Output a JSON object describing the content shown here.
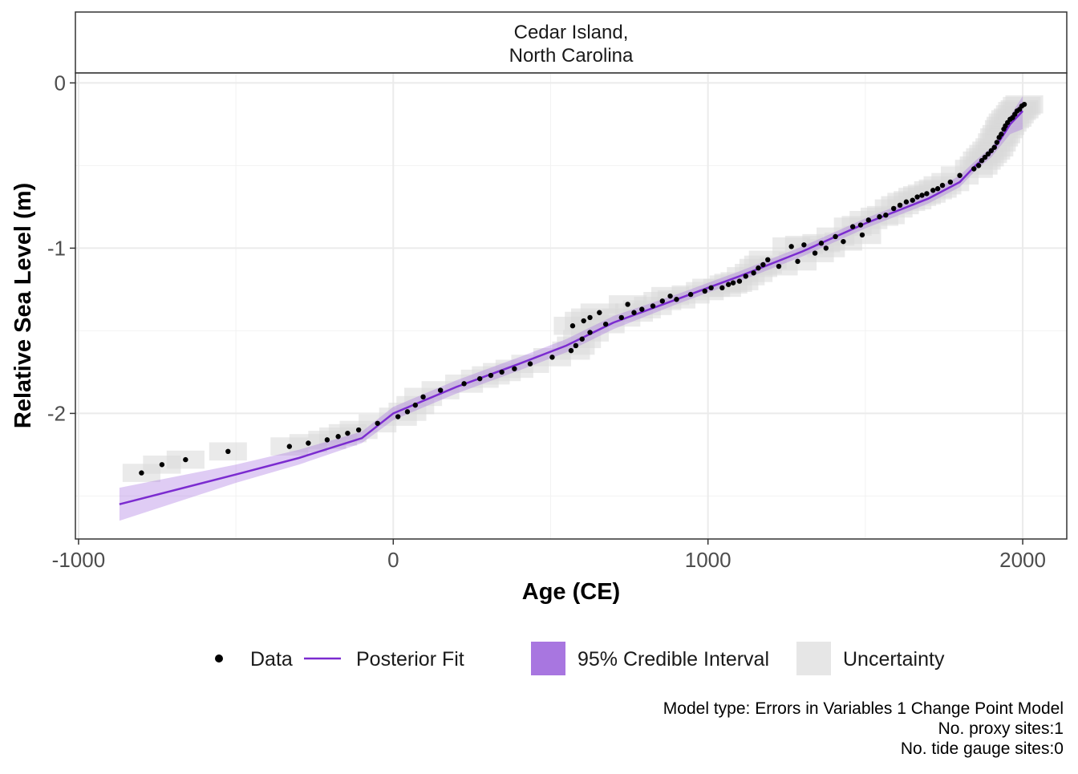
{
  "chart_data": {
    "type": "scatter",
    "facet_title_line1": "Cedar Island,",
    "facet_title_line2": "North Carolina",
    "xlabel": "Age (CE)",
    "ylabel": "Relative Sea Level (m)",
    "xlim": [
      -1010,
      2140
    ],
    "ylim": [
      -2.76,
      0.06
    ],
    "x_ticks": [
      -1000,
      0,
      1000,
      2000
    ],
    "x_tick_labels": [
      "-1000",
      "0",
      "1000",
      "2000"
    ],
    "y_ticks": [
      0,
      -1,
      -2
    ],
    "y_tick_labels": [
      "0",
      "-1",
      "-2"
    ],
    "grid": true,
    "legend_position": "bottom",
    "legend": {
      "data": "Data",
      "fit": "Posterior Fit",
      "ci": "95% Credible Interval",
      "uncertainty": "Uncertainty"
    },
    "colors": {
      "points": "#000000",
      "fit_line": "#7b2bd0",
      "ci_fill": "#a26ee0",
      "uncertainty_fill": "#d9d9d9",
      "panel_border": "#333333",
      "grid": "#ebebeb"
    },
    "points": [
      {
        "x": -800,
        "y": -2.36
      },
      {
        "x": -735,
        "y": -2.31
      },
      {
        "x": -660,
        "y": -2.28
      },
      {
        "x": -525,
        "y": -2.23
      },
      {
        "x": -330,
        "y": -2.2
      },
      {
        "x": -270,
        "y": -2.18
      },
      {
        "x": -210,
        "y": -2.16
      },
      {
        "x": -175,
        "y": -2.14
      },
      {
        "x": -145,
        "y": -2.12
      },
      {
        "x": -110,
        "y": -2.1
      },
      {
        "x": -50,
        "y": -2.06
      },
      {
        "x": 15,
        "y": -2.02
      },
      {
        "x": 45,
        "y": -1.99
      },
      {
        "x": 70,
        "y": -1.95
      },
      {
        "x": 95,
        "y": -1.9
      },
      {
        "x": 150,
        "y": -1.86
      },
      {
        "x": 225,
        "y": -1.82
      },
      {
        "x": 275,
        "y": -1.79
      },
      {
        "x": 310,
        "y": -1.77
      },
      {
        "x": 345,
        "y": -1.75
      },
      {
        "x": 385,
        "y": -1.73
      },
      {
        "x": 435,
        "y": -1.7
      },
      {
        "x": 505,
        "y": -1.66
      },
      {
        "x": 565,
        "y": -1.62
      },
      {
        "x": 580,
        "y": -1.59
      },
      {
        "x": 600,
        "y": -1.55
      },
      {
        "x": 625,
        "y": -1.51
      },
      {
        "x": 570,
        "y": -1.47
      },
      {
        "x": 605,
        "y": -1.44
      },
      {
        "x": 625,
        "y": -1.42
      },
      {
        "x": 655,
        "y": -1.39
      },
      {
        "x": 675,
        "y": -1.46
      },
      {
        "x": 725,
        "y": -1.42
      },
      {
        "x": 745,
        "y": -1.34
      },
      {
        "x": 765,
        "y": -1.39
      },
      {
        "x": 790,
        "y": -1.37
      },
      {
        "x": 825,
        "y": -1.35
      },
      {
        "x": 855,
        "y": -1.32
      },
      {
        "x": 880,
        "y": -1.29
      },
      {
        "x": 900,
        "y": -1.31
      },
      {
        "x": 945,
        "y": -1.28
      },
      {
        "x": 990,
        "y": -1.26
      },
      {
        "x": 1010,
        "y": -1.24
      },
      {
        "x": 1045,
        "y": -1.24
      },
      {
        "x": 1065,
        "y": -1.22
      },
      {
        "x": 1080,
        "y": -1.21
      },
      {
        "x": 1100,
        "y": -1.2
      },
      {
        "x": 1120,
        "y": -1.17
      },
      {
        "x": 1145,
        "y": -1.15
      },
      {
        "x": 1160,
        "y": -1.12
      },
      {
        "x": 1175,
        "y": -1.1
      },
      {
        "x": 1190,
        "y": -1.07
      },
      {
        "x": 1225,
        "y": -1.11
      },
      {
        "x": 1265,
        "y": -0.99
      },
      {
        "x": 1285,
        "y": -1.08
      },
      {
        "x": 1305,
        "y": -0.98
      },
      {
        "x": 1340,
        "y": -1.03
      },
      {
        "x": 1360,
        "y": -0.97
      },
      {
        "x": 1375,
        "y": -1.0
      },
      {
        "x": 1405,
        "y": -0.93
      },
      {
        "x": 1430,
        "y": -0.96
      },
      {
        "x": 1460,
        "y": -0.87
      },
      {
        "x": 1490,
        "y": -0.92
      },
      {
        "x": 1485,
        "y": -0.86
      },
      {
        "x": 1510,
        "y": -0.83
      },
      {
        "x": 1545,
        "y": -0.81
      },
      {
        "x": 1565,
        "y": -0.8
      },
      {
        "x": 1590,
        "y": -0.76
      },
      {
        "x": 1610,
        "y": -0.74
      },
      {
        "x": 1630,
        "y": -0.72
      },
      {
        "x": 1650,
        "y": -0.71
      },
      {
        "x": 1665,
        "y": -0.69
      },
      {
        "x": 1680,
        "y": -0.68
      },
      {
        "x": 1695,
        "y": -0.67
      },
      {
        "x": 1715,
        "y": -0.65
      },
      {
        "x": 1730,
        "y": -0.64
      },
      {
        "x": 1745,
        "y": -0.62
      },
      {
        "x": 1770,
        "y": -0.6
      },
      {
        "x": 1800,
        "y": -0.56
      },
      {
        "x": 1845,
        "y": -0.52
      },
      {
        "x": 1860,
        "y": -0.5
      },
      {
        "x": 1870,
        "y": -0.47
      },
      {
        "x": 1880,
        "y": -0.45
      },
      {
        "x": 1890,
        "y": -0.43
      },
      {
        "x": 1900,
        "y": -0.41
      },
      {
        "x": 1910,
        "y": -0.39
      },
      {
        "x": 1918,
        "y": -0.36
      },
      {
        "x": 1925,
        "y": -0.33
      },
      {
        "x": 1932,
        "y": -0.31
      },
      {
        "x": 1940,
        "y": -0.28
      },
      {
        "x": 1945,
        "y": -0.26
      },
      {
        "x": 1952,
        "y": -0.24
      },
      {
        "x": 1960,
        "y": -0.22
      },
      {
        "x": 1968,
        "y": -0.21
      },
      {
        "x": 1975,
        "y": -0.19
      },
      {
        "x": 1982,
        "y": -0.17
      },
      {
        "x": 1990,
        "y": -0.16
      },
      {
        "x": 1997,
        "y": -0.14
      },
      {
        "x": 2005,
        "y": -0.13
      }
    ],
    "fit": {
      "x": [
        -870,
        -500,
        -300,
        -100,
        0,
        200,
        400,
        550,
        700,
        900,
        1100,
        1300,
        1500,
        1700,
        1800,
        1850,
        1900,
        1930,
        1960,
        2000
      ],
      "y": [
        -2.55,
        -2.37,
        -2.27,
        -2.15,
        -2.0,
        -1.84,
        -1.7,
        -1.59,
        -1.45,
        -1.31,
        -1.17,
        -1.02,
        -0.85,
        -0.7,
        -0.6,
        -0.5,
        -0.42,
        -0.34,
        -0.25,
        -0.17
      ],
      "lower": [
        -2.65,
        -2.42,
        -2.31,
        -2.18,
        -2.04,
        -1.88,
        -1.74,
        -1.63,
        -1.49,
        -1.34,
        -1.2,
        -1.05,
        -0.88,
        -0.73,
        -0.63,
        -0.53,
        -0.45,
        -0.38,
        -0.31,
        -0.28
      ],
      "upper": [
        -2.45,
        -2.31,
        -2.22,
        -2.11,
        -1.96,
        -1.8,
        -1.66,
        -1.55,
        -1.41,
        -1.28,
        -1.14,
        -0.99,
        -0.82,
        -0.67,
        -0.56,
        -0.47,
        -0.39,
        -0.3,
        -0.2,
        -0.08
      ]
    },
    "uncertainty_x_halfwidth": 60,
    "uncertainty_y_halfwidth": 0.055,
    "caption": [
      "Model type: Errors in Variables 1 Change Point Model",
      "No. proxy sites:1",
      "No. tide gauge sites:0"
    ]
  }
}
